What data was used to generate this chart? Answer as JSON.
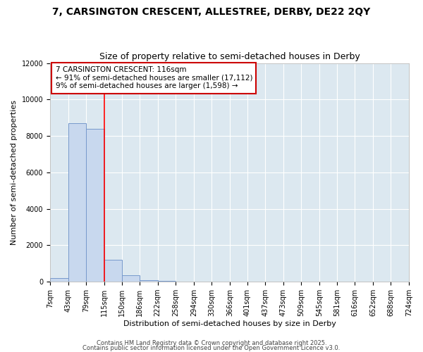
{
  "title1": "7, CARSINGTON CRESCENT, ALLESTREE, DERBY, DE22 2QY",
  "title2": "Size of property relative to semi-detached houses in Derby",
  "xlabel": "Distribution of semi-detached houses by size in Derby",
  "ylabel": "Number of semi-detached properties",
  "bin_edges": [
    7,
    43,
    79,
    115,
    150,
    186,
    222,
    258,
    294,
    330,
    366,
    401,
    437,
    473,
    509,
    545,
    581,
    616,
    652,
    688,
    724
  ],
  "bar_heights": [
    200,
    8700,
    8400,
    1200,
    350,
    100,
    50,
    0,
    0,
    0,
    0,
    0,
    0,
    0,
    0,
    0,
    0,
    0,
    0,
    0
  ],
  "bar_color": "#c8d8ee",
  "bar_edge_color": "#7799cc",
  "red_line_x": 115,
  "annotation_title": "7 CARSINGTON CRESCENT: 116sqm",
  "annotation_line1": "← 91% of semi-detached houses are smaller (17,112)",
  "annotation_line2": "9% of semi-detached houses are larger (1,598) →",
  "annotation_box_color": "#ffffff",
  "annotation_box_edge": "#cc0000",
  "ylim": [
    0,
    12000
  ],
  "plot_bg_color": "#dce8f0",
  "fig_bg_color": "#ffffff",
  "footer1": "Contains HM Land Registry data © Crown copyright and database right 2025.",
  "footer2": "Contains public sector information licensed under the Open Government Licence v3.0.",
  "title1_fontsize": 10,
  "title2_fontsize": 9,
  "axis_label_fontsize": 8,
  "tick_fontsize": 7,
  "annotation_fontsize": 7.5,
  "footer_fontsize": 6
}
